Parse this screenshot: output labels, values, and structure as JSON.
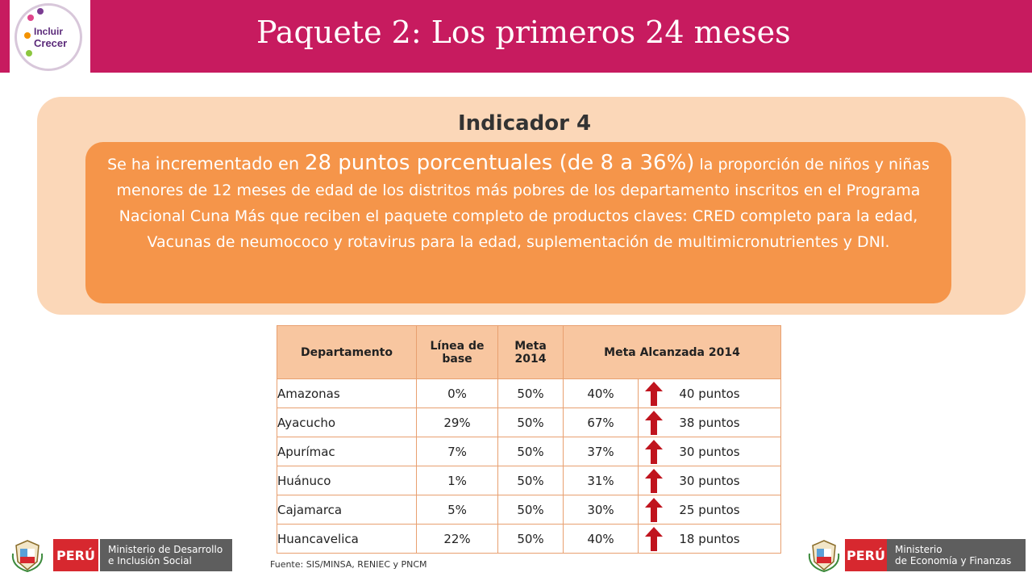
{
  "header": {
    "title": "Paquete 2: Los primeros 24 meses",
    "logo": {
      "line1": "Incluir",
      "line2": "Crecer"
    }
  },
  "indicator": {
    "title": "Indicador 4",
    "desc": {
      "p1": "Se ha ",
      "p2": "incrementado en ",
      "p3": "28 puntos porcentuales (de 8 a 36%)",
      "p4": " la proporción de niños y niñas menores de 12 meses de edad de los distritos más pobres de los departamento inscritos en el Programa Nacional Cuna Más que reciben el paquete completo de productos claves: CRED completo para la edad, Vacunas de neumococo y rotavirus para la edad, suplementación de multimicronutrientes y DNI."
    }
  },
  "table": {
    "headers": {
      "dep": "Departamento",
      "lb": "Línea de base",
      "meta": "Meta 2014",
      "alc": "Meta Alcanzada 2014"
    },
    "rows": [
      {
        "dep": "Amazonas",
        "lb": "0%",
        "meta": "50%",
        "alc": "40%",
        "pts": "40 puntos"
      },
      {
        "dep": "Ayacucho",
        "lb": "29%",
        "meta": "50%",
        "alc": "67%",
        "pts": "38 puntos"
      },
      {
        "dep": "Apurímac",
        "lb": "7%",
        "meta": "50%",
        "alc": "37%",
        "pts": "30 puntos"
      },
      {
        "dep": "Huánuco",
        "lb": "1%",
        "meta": "50%",
        "alc": "31%",
        "pts": "30 puntos"
      },
      {
        "dep": "Cajamarca",
        "lb": "5%",
        "meta": "50%",
        "alc": "30%",
        "pts": "25 puntos"
      },
      {
        "dep": "Huancavelica",
        "lb": "22%",
        "meta": "50%",
        "alc": "40%",
        "pts": "18 puntos"
      }
    ]
  },
  "source": "Fuente: SIS/MINSA, RENIEC y PNCM",
  "footer": {
    "left": {
      "peru": "PERÚ",
      "line1": "Ministerio de Desarrollo",
      "line2": "e Inclusión Social"
    },
    "right": {
      "peru": "PERÚ",
      "line1": "Ministerio",
      "line2": "de Economía y Finanzas"
    }
  },
  "colors": {
    "header": "#c71b5f",
    "outer_panel": "#fbd7b8",
    "inner_panel": "#f5954a",
    "arrow": "#c0141e"
  }
}
